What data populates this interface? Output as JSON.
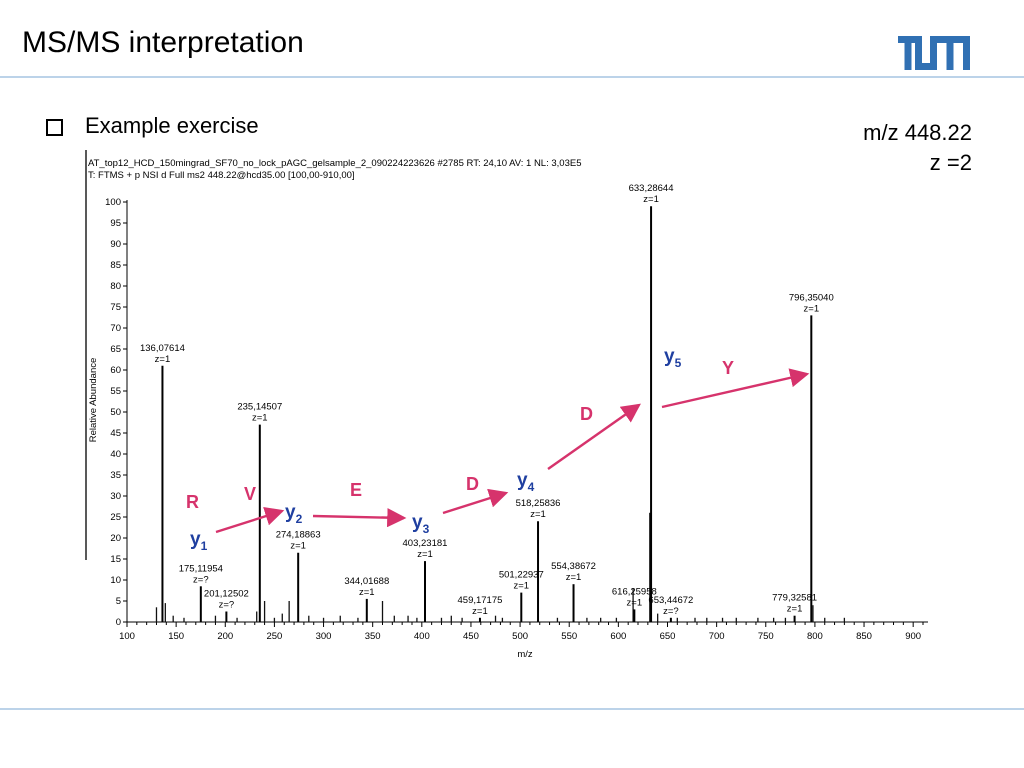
{
  "slide": {
    "title": "MS/MS interpretation",
    "bullet": "Example exercise",
    "precursor_mz": "m/z 448.22",
    "precursor_charge": "z =2"
  },
  "colors": {
    "accent_blue": "#3070b3",
    "annotation_pink": "#d6336c",
    "y_ion_blue": "#1f3fa0",
    "rule_blue": "#bcd3e9"
  },
  "chart_data": {
    "type": "bar",
    "header_line1": "AT_top12_HCD_150mingrad_SF70_no_lock_pAGC_gelsample_2_090224223626 #2785  RT: 24,10  AV: 1  NL: 3,03E5",
    "header_line2": "T: FTMS + p NSI d Full ms2 448.22@hcd35.00 [100,00-910,00]",
    "xlabel": "m/z",
    "ylabel": "Relative Abundance",
    "xlim": [
      100,
      910
    ],
    "ylim": [
      0,
      100
    ],
    "xticks": [
      100,
      150,
      200,
      250,
      300,
      350,
      400,
      450,
      500,
      550,
      600,
      650,
      700,
      750,
      800,
      850,
      900
    ],
    "yticks": [
      0,
      5,
      10,
      15,
      20,
      25,
      30,
      35,
      40,
      45,
      50,
      55,
      60,
      65,
      70,
      75,
      80,
      85,
      90,
      95,
      100
    ],
    "labeled_peaks": [
      {
        "mz": 136.07614,
        "intensity": 61,
        "label": "136,07614",
        "charge": "z=1"
      },
      {
        "mz": 175.11954,
        "intensity": 8.5,
        "label": "175,11954",
        "charge": "z=?"
      },
      {
        "mz": 201.12502,
        "intensity": 2.5,
        "label": "201,12502",
        "charge": "z=?"
      },
      {
        "mz": 235.14507,
        "intensity": 47,
        "label": "235,14507",
        "charge": "z=1"
      },
      {
        "mz": 274.18863,
        "intensity": 16.5,
        "label": "274,18863",
        "charge": "z=1"
      },
      {
        "mz": 344.01688,
        "intensity": 5.5,
        "label": "344,01688",
        "charge": "z=1"
      },
      {
        "mz": 403.23181,
        "intensity": 14.5,
        "label": "403,23181",
        "charge": "z=1"
      },
      {
        "mz": 459.17175,
        "intensity": 1,
        "label": "459,17175",
        "charge": "z=1"
      },
      {
        "mz": 501.22937,
        "intensity": 7,
        "label": "501,22937",
        "charge": "z=1"
      },
      {
        "mz": 518.25836,
        "intensity": 24,
        "label": "518,25836",
        "charge": "z=1"
      },
      {
        "mz": 554.38672,
        "intensity": 9,
        "label": "554,38672",
        "charge": "z=1"
      },
      {
        "mz": 616.25958,
        "intensity": 3,
        "label": "616,25958",
        "charge": "z=1"
      },
      {
        "mz": 633.28644,
        "intensity": 99,
        "label": "633,28644",
        "charge": "z=1"
      },
      {
        "mz": 653.44672,
        "intensity": 1,
        "label": "653,44672",
        "charge": "z=?"
      },
      {
        "mz": 779.32581,
        "intensity": 1.5,
        "label": "779,32581",
        "charge": "z=1"
      },
      {
        "mz": 796.3504,
        "intensity": 73,
        "label": "796,35040",
        "charge": "z=1"
      }
    ],
    "minor_peaks": [
      {
        "mz": 130,
        "intensity": 3.5
      },
      {
        "mz": 139,
        "intensity": 4.5
      },
      {
        "mz": 147,
        "intensity": 1.5
      },
      {
        "mz": 158,
        "intensity": 1
      },
      {
        "mz": 190,
        "intensity": 1.5
      },
      {
        "mz": 212,
        "intensity": 1
      },
      {
        "mz": 232,
        "intensity": 2.5
      },
      {
        "mz": 240,
        "intensity": 5
      },
      {
        "mz": 250,
        "intensity": 1
      },
      {
        "mz": 258,
        "intensity": 2
      },
      {
        "mz": 265,
        "intensity": 5
      },
      {
        "mz": 285,
        "intensity": 1.5
      },
      {
        "mz": 300,
        "intensity": 1
      },
      {
        "mz": 317,
        "intensity": 1.5
      },
      {
        "mz": 335,
        "intensity": 1
      },
      {
        "mz": 360,
        "intensity": 5
      },
      {
        "mz": 372,
        "intensity": 1.5
      },
      {
        "mz": 386,
        "intensity": 1.5
      },
      {
        "mz": 395,
        "intensity": 1
      },
      {
        "mz": 420,
        "intensity": 1
      },
      {
        "mz": 430,
        "intensity": 1.5
      },
      {
        "mz": 441,
        "intensity": 1
      },
      {
        "mz": 475,
        "intensity": 1.5
      },
      {
        "mz": 482,
        "intensity": 1
      },
      {
        "mz": 538,
        "intensity": 1
      },
      {
        "mz": 568,
        "intensity": 1
      },
      {
        "mz": 582,
        "intensity": 1
      },
      {
        "mz": 598,
        "intensity": 1
      },
      {
        "mz": 615,
        "intensity": 8
      },
      {
        "mz": 632,
        "intensity": 26
      },
      {
        "mz": 640,
        "intensity": 2
      },
      {
        "mz": 660,
        "intensity": 1
      },
      {
        "mz": 678,
        "intensity": 1
      },
      {
        "mz": 690,
        "intensity": 1
      },
      {
        "mz": 706,
        "intensity": 1
      },
      {
        "mz": 720,
        "intensity": 1
      },
      {
        "mz": 742,
        "intensity": 1
      },
      {
        "mz": 758,
        "intensity": 1
      },
      {
        "mz": 770,
        "intensity": 1
      },
      {
        "mz": 798,
        "intensity": 4
      },
      {
        "mz": 810,
        "intensity": 1
      },
      {
        "mz": 830,
        "intensity": 1
      }
    ],
    "annotations": {
      "y_ions": [
        {
          "base": "y",
          "sub": "1",
          "mz": 175.12
        },
        {
          "base": "y",
          "sub": "2",
          "mz": 274.19
        },
        {
          "base": "y",
          "sub": "3",
          "mz": 403.23
        },
        {
          "base": "y",
          "sub": "4",
          "mz": 518.26
        },
        {
          "base": "y",
          "sub": "5",
          "mz": 633.29
        }
      ],
      "residues": [
        "R",
        "V",
        "E",
        "D",
        "D",
        "Y"
      ]
    }
  }
}
